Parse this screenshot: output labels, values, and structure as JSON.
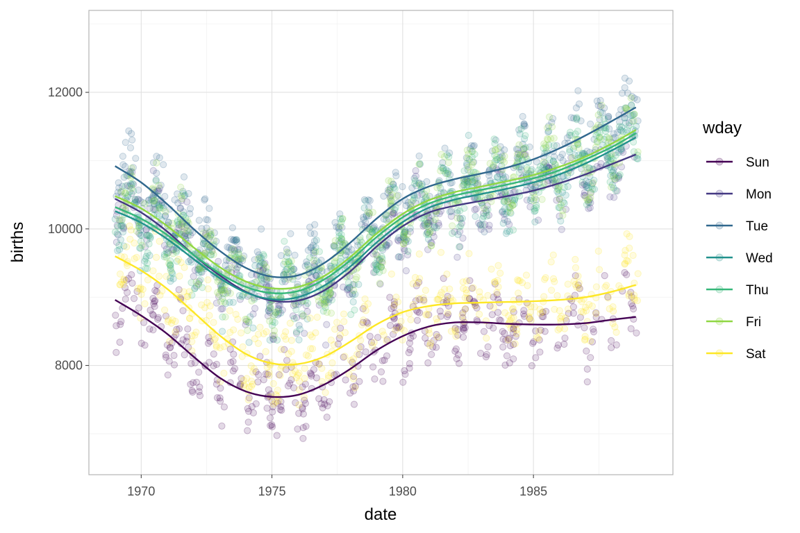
{
  "chart_data": {
    "type": "scatter",
    "title": "",
    "xlabel": "date",
    "ylabel": "births",
    "xlim": [
      "1968-01-01",
      "1990-05-01"
    ],
    "ylim": [
      6400,
      13200
    ],
    "x_ticks": [
      {
        "date": "1970-01-01",
        "label": "1970"
      },
      {
        "date": "1975-01-01",
        "label": "1975"
      },
      {
        "date": "1980-01-01",
        "label": "1980"
      },
      {
        "date": "1985-01-01",
        "label": "1985"
      }
    ],
    "y_ticks": [
      {
        "value": 8000,
        "label": "8000"
      },
      {
        "value": 10000,
        "label": "10000"
      },
      {
        "value": 12000,
        "label": "12000"
      }
    ],
    "grid": true,
    "legend": {
      "title": "wday",
      "position": "right"
    },
    "point_alpha": 0.15,
    "trend": "smooth",
    "series": [
      {
        "name": "Sun",
        "color": "#440154",
        "smooth": [
          [
            "1969-01-01",
            8960
          ],
          [
            "1970-01-01",
            8730
          ],
          [
            "1971-01-01",
            8460
          ],
          [
            "1972-01-01",
            8130
          ],
          [
            "1973-01-01",
            7820
          ],
          [
            "1974-01-01",
            7620
          ],
          [
            "1975-01-01",
            7540
          ],
          [
            "1976-01-01",
            7570
          ],
          [
            "1977-01-01",
            7720
          ],
          [
            "1978-01-01",
            7950
          ],
          [
            "1979-01-01",
            8220
          ],
          [
            "1980-01-01",
            8430
          ],
          [
            "1981-01-01",
            8570
          ],
          [
            "1982-01-01",
            8630
          ],
          [
            "1983-01-01",
            8630
          ],
          [
            "1984-01-01",
            8610
          ],
          [
            "1985-01-01",
            8600
          ],
          [
            "1986-01-01",
            8600
          ],
          [
            "1987-01-01",
            8620
          ],
          [
            "1988-01-01",
            8670
          ],
          [
            "1988-12-01",
            8710
          ]
        ]
      },
      {
        "name": "Mon",
        "color": "#443983",
        "smooth": [
          [
            "1969-01-01",
            10440
          ],
          [
            "1970-01-01",
            10240
          ],
          [
            "1971-01-01",
            9960
          ],
          [
            "1972-01-01",
            9620
          ],
          [
            "1973-01-01",
            9320
          ],
          [
            "1974-01-01",
            9080
          ],
          [
            "1975-01-01",
            8950
          ],
          [
            "1976-01-01",
            8950
          ],
          [
            "1977-01-01",
            9100
          ],
          [
            "1978-01-01",
            9380
          ],
          [
            "1979-01-01",
            9740
          ],
          [
            "1980-01-01",
            10040
          ],
          [
            "1981-01-01",
            10240
          ],
          [
            "1982-01-01",
            10340
          ],
          [
            "1983-01-01",
            10410
          ],
          [
            "1984-01-01",
            10480
          ],
          [
            "1985-01-01",
            10560
          ],
          [
            "1986-01-01",
            10670
          ],
          [
            "1987-01-01",
            10800
          ],
          [
            "1988-01-01",
            10950
          ],
          [
            "1988-12-01",
            11090
          ]
        ]
      },
      {
        "name": "Tue",
        "color": "#31688e",
        "smooth": [
          [
            "1969-01-01",
            10920
          ],
          [
            "1970-01-01",
            10680
          ],
          [
            "1971-01-01",
            10360
          ],
          [
            "1972-01-01",
            10000
          ],
          [
            "1973-01-01",
            9680
          ],
          [
            "1974-01-01",
            9430
          ],
          [
            "1975-01-01",
            9300
          ],
          [
            "1976-01-01",
            9320
          ],
          [
            "1977-01-01",
            9500
          ],
          [
            "1978-01-01",
            9800
          ],
          [
            "1979-01-01",
            10150
          ],
          [
            "1980-01-01",
            10440
          ],
          [
            "1981-01-01",
            10620
          ],
          [
            "1982-01-01",
            10730
          ],
          [
            "1983-01-01",
            10810
          ],
          [
            "1984-01-01",
            10900
          ],
          [
            "1985-01-01",
            11020
          ],
          [
            "1986-01-01",
            11180
          ],
          [
            "1987-01-01",
            11370
          ],
          [
            "1988-01-01",
            11580
          ],
          [
            "1988-12-01",
            11780
          ]
        ]
      },
      {
        "name": "Wed",
        "color": "#21918c",
        "smooth": [
          [
            "1969-01-01",
            10260
          ],
          [
            "1970-01-01",
            10090
          ],
          [
            "1971-01-01",
            9850
          ],
          [
            "1972-01-01",
            9560
          ],
          [
            "1973-01-01",
            9280
          ],
          [
            "1974-01-01",
            9070
          ],
          [
            "1975-01-01",
            8970
          ],
          [
            "1976-01-01",
            9000
          ],
          [
            "1977-01-01",
            9170
          ],
          [
            "1978-01-01",
            9450
          ],
          [
            "1979-01-01",
            9800
          ],
          [
            "1980-01-01",
            10100
          ],
          [
            "1981-01-01",
            10310
          ],
          [
            "1982-01-01",
            10430
          ],
          [
            "1983-01-01",
            10510
          ],
          [
            "1984-01-01",
            10590
          ],
          [
            "1985-01-01",
            10680
          ],
          [
            "1986-01-01",
            10800
          ],
          [
            "1987-01-01",
            10960
          ],
          [
            "1988-01-01",
            11150
          ],
          [
            "1988-12-01",
            11340
          ]
        ]
      },
      {
        "name": "Thu",
        "color": "#35b779",
        "smooth": [
          [
            "1969-01-01",
            10320
          ],
          [
            "1970-01-01",
            10150
          ],
          [
            "1971-01-01",
            9910
          ],
          [
            "1972-01-01",
            9620
          ],
          [
            "1973-01-01",
            9350
          ],
          [
            "1974-01-01",
            9150
          ],
          [
            "1975-01-01",
            9060
          ],
          [
            "1976-01-01",
            9090
          ],
          [
            "1977-01-01",
            9260
          ],
          [
            "1978-01-01",
            9540
          ],
          [
            "1979-01-01",
            9880
          ],
          [
            "1980-01-01",
            10170
          ],
          [
            "1981-01-01",
            10370
          ],
          [
            "1982-01-01",
            10490
          ],
          [
            "1983-01-01",
            10570
          ],
          [
            "1984-01-01",
            10650
          ],
          [
            "1985-01-01",
            10740
          ],
          [
            "1986-01-01",
            10860
          ],
          [
            "1987-01-01",
            11020
          ],
          [
            "1988-01-01",
            11200
          ],
          [
            "1988-12-01",
            11400
          ]
        ]
      },
      {
        "name": "Fri",
        "color": "#90d743",
        "smooth": [
          [
            "1969-01-01",
            10480
          ],
          [
            "1970-01-01",
            10300
          ],
          [
            "1971-01-01",
            10040
          ],
          [
            "1972-01-01",
            9730
          ],
          [
            "1973-01-01",
            9440
          ],
          [
            "1974-01-01",
            9230
          ],
          [
            "1975-01-01",
            9130
          ],
          [
            "1976-01-01",
            9150
          ],
          [
            "1977-01-01",
            9310
          ],
          [
            "1978-01-01",
            9590
          ],
          [
            "1979-01-01",
            9930
          ],
          [
            "1980-01-01",
            10220
          ],
          [
            "1981-01-01",
            10420
          ],
          [
            "1982-01-01",
            10540
          ],
          [
            "1983-01-01",
            10620
          ],
          [
            "1984-01-01",
            10700
          ],
          [
            "1985-01-01",
            10790
          ],
          [
            "1986-01-01",
            10910
          ],
          [
            "1987-01-01",
            11060
          ],
          [
            "1988-01-01",
            11250
          ],
          [
            "1988-12-01",
            11450
          ]
        ]
      },
      {
        "name": "Sat",
        "color": "#fde725",
        "smooth": [
          [
            "1969-01-01",
            9600
          ],
          [
            "1970-01-01",
            9390
          ],
          [
            "1971-01-01",
            9120
          ],
          [
            "1972-01-01",
            8780
          ],
          [
            "1973-01-01",
            8440
          ],
          [
            "1974-01-01",
            8170
          ],
          [
            "1975-01-01",
            8030
          ],
          [
            "1976-01-01",
            8020
          ],
          [
            "1977-01-01",
            8130
          ],
          [
            "1978-01-01",
            8350
          ],
          [
            "1979-01-01",
            8600
          ],
          [
            "1980-01-01",
            8780
          ],
          [
            "1981-01-01",
            8870
          ],
          [
            "1982-01-01",
            8910
          ],
          [
            "1983-01-01",
            8920
          ],
          [
            "1984-01-01",
            8930
          ],
          [
            "1985-01-01",
            8940
          ],
          [
            "1986-01-01",
            8960
          ],
          [
            "1987-01-01",
            9000
          ],
          [
            "1988-01-01",
            9080
          ],
          [
            "1988-12-01",
            9180
          ]
        ]
      }
    ]
  }
}
